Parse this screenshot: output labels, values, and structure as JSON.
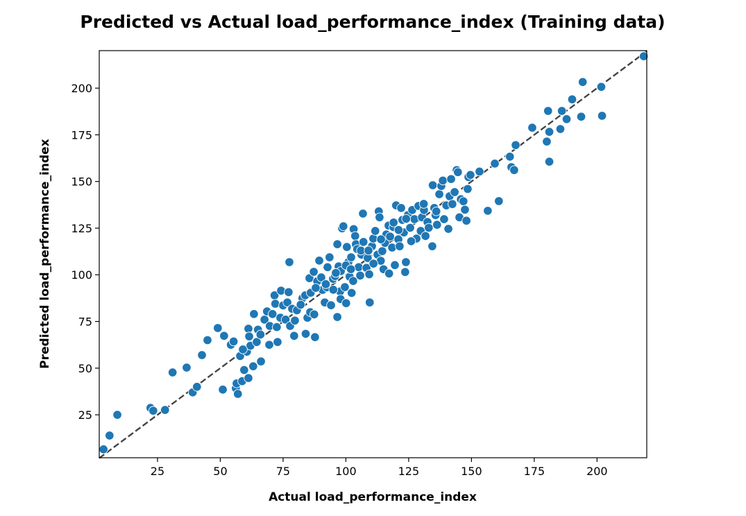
{
  "chart_data": {
    "type": "scatter",
    "title": "Predicted vs Actual load_performance_index (Training data)",
    "xlabel": "Actual load_performance_index",
    "ylabel": "Predicted load_performance_index",
    "xlim": [
      1.8,
      219.8
    ],
    "ylim": [
      2.0,
      220.1
    ],
    "xticks": [
      25,
      50,
      75,
      100,
      125,
      150,
      175,
      200
    ],
    "yticks": [
      25,
      50,
      75,
      100,
      125,
      150,
      175,
      200
    ],
    "grid": false,
    "point_color": "#1f77b4",
    "reference_line": {
      "style": "dashed",
      "color": "#444444",
      "from": [
        1.8,
        1.8
      ],
      "to": [
        219.8,
        219.8
      ]
    },
    "points": [
      [
        3.5,
        6.5
      ],
      [
        5.9,
        13.9
      ],
      [
        9,
        25
      ],
      [
        22.2,
        28.7
      ],
      [
        23.3,
        27.2
      ],
      [
        28,
        27.6
      ],
      [
        31,
        47.7
      ],
      [
        36.6,
        50.3
      ],
      [
        39,
        37
      ],
      [
        40.7,
        40
      ],
      [
        42.7,
        57
      ],
      [
        44.9,
        65
      ],
      [
        49,
        71.5
      ],
      [
        51,
        38.5
      ],
      [
        51.5,
        67.3
      ],
      [
        54.2,
        62.5
      ],
      [
        55.3,
        64.3
      ],
      [
        56.2,
        39.2
      ],
      [
        56.5,
        41.8
      ],
      [
        57,
        36.2
      ],
      [
        57.9,
        56.5
      ],
      [
        58.7,
        43
      ],
      [
        59.5,
        49
      ],
      [
        61.2,
        44.7
      ],
      [
        60.6,
        58.8
      ],
      [
        61.2,
        71.1
      ],
      [
        61.5,
        67
      ],
      [
        62,
        62
      ],
      [
        63.1,
        51
      ],
      [
        63.4,
        79
      ],
      [
        64.5,
        64
      ],
      [
        65,
        70.6
      ],
      [
        66.2,
        53.6
      ],
      [
        67.6,
        76
      ],
      [
        68.6,
        80.4
      ],
      [
        69.7,
        72.6
      ],
      [
        69.5,
        62.5
      ],
      [
        70.8,
        79
      ],
      [
        71.6,
        89
      ],
      [
        71.9,
        84.5
      ],
      [
        72.5,
        72
      ],
      [
        72.8,
        64
      ],
      [
        73.9,
        77
      ],
      [
        74.2,
        91.5
      ],
      [
        75,
        83.6
      ],
      [
        76,
        76
      ],
      [
        76.7,
        85.2
      ],
      [
        77.5,
        106.8
      ],
      [
        77.2,
        90.7
      ],
      [
        77.8,
        72.6
      ],
      [
        78.6,
        81.8
      ],
      [
        79.4,
        67.3
      ],
      [
        79.7,
        75.5
      ],
      [
        80.5,
        81
      ],
      [
        82.7,
        87.4
      ],
      [
        83.8,
        89
      ],
      [
        84,
        68.4
      ],
      [
        84.7,
        77
      ],
      [
        85.5,
        98.2
      ],
      [
        85.8,
        80
      ],
      [
        86,
        90.4
      ],
      [
        87.2,
        101.6
      ],
      [
        87.4,
        78.8
      ],
      [
        87.7,
        66.6
      ],
      [
        88.6,
        96.5
      ],
      [
        89.4,
        107.6
      ],
      [
        90.2,
        98.6
      ],
      [
        90.7,
        91.9
      ],
      [
        91.6,
        85.2
      ],
      [
        92.4,
        93.3
      ],
      [
        92.7,
        104.1
      ],
      [
        93.5,
        109.4
      ],
      [
        94.1,
        83.7
      ],
      [
        94.9,
        97.8
      ],
      [
        95.7,
        99.3
      ],
      [
        96.6,
        116.4
      ],
      [
        96.6,
        77.4
      ],
      [
        97.1,
        104.5
      ],
      [
        97.7,
        91.1
      ],
      [
        97.9,
        87
      ],
      [
        98.5,
        124.9
      ],
      [
        99,
        126
      ],
      [
        99.6,
        93.4
      ],
      [
        100.1,
        84.8
      ],
      [
        100.4,
        114.9
      ],
      [
        101,
        106.8
      ],
      [
        101.5,
        99
      ],
      [
        102.1,
        109.4
      ],
      [
        102.3,
        90.3
      ],
      [
        102.9,
        96.7
      ],
      [
        103.1,
        124.5
      ],
      [
        103.7,
        120.8
      ],
      [
        104,
        116.4
      ],
      [
        104.5,
        113.8
      ],
      [
        105.1,
        104.1
      ],
      [
        105.7,
        99.6
      ],
      [
        106.2,
        110.8
      ],
      [
        106.8,
        132.8
      ],
      [
        107,
        117.6
      ],
      [
        108.2,
        103.7
      ],
      [
        108.7,
        109
      ],
      [
        109.3,
        100.3
      ],
      [
        109.5,
        85.2
      ],
      [
        110.4,
        115.3
      ],
      [
        110.9,
        119.4
      ],
      [
        111.7,
        123.5
      ],
      [
        112.6,
        110.8
      ],
      [
        113.1,
        134
      ],
      [
        113.4,
        130.8
      ],
      [
        113.9,
        107.5
      ],
      [
        114.5,
        112.7
      ],
      [
        115,
        103
      ],
      [
        115.6,
        117.1
      ],
      [
        116.1,
        121.6
      ],
      [
        117,
        126.4
      ],
      [
        117.2,
        100.7
      ],
      [
        117.6,
        120.5
      ],
      [
        118.4,
        114.6
      ],
      [
        118.9,
        125.6
      ],
      [
        119.5,
        105.2
      ],
      [
        120,
        137.2
      ],
      [
        120.9,
        119
      ],
      [
        121.4,
        115.3
      ],
      [
        122,
        135.8
      ],
      [
        122.5,
        129.4
      ],
      [
        123.1,
        122.7
      ],
      [
        123.6,
        101.5
      ],
      [
        123.9,
        106.8
      ],
      [
        124.7,
        132
      ],
      [
        125.6,
        125.2
      ],
      [
        126.4,
        134.7
      ],
      [
        127.3,
        129.8
      ],
      [
        128.1,
        119.4
      ],
      [
        128.9,
        136.9
      ],
      [
        129.8,
        123.5
      ],
      [
        130.3,
        130.8
      ],
      [
        131.1,
        134.7
      ],
      [
        131.7,
        120.8
      ],
      [
        132.5,
        128.3
      ],
      [
        133,
        125.2
      ],
      [
        134.4,
        115.3
      ],
      [
        134.6,
        148
      ],
      [
        135.2,
        135.8
      ],
      [
        135.7,
        132
      ],
      [
        136.3,
        126.8
      ],
      [
        137.2,
        143.2
      ],
      [
        138,
        147.6
      ],
      [
        138.6,
        150.5
      ],
      [
        139.1,
        129.8
      ],
      [
        140,
        137.2
      ],
      [
        140.8,
        124.6
      ],
      [
        141.3,
        142.1
      ],
      [
        141.9,
        151.3
      ],
      [
        142.4,
        137.9
      ],
      [
        143.3,
        144.3
      ],
      [
        144.1,
        156.1
      ],
      [
        144.6,
        155
      ],
      [
        145.2,
        130.8
      ],
      [
        145.8,
        140.5
      ],
      [
        146.8,
        139.4
      ],
      [
        147.4,
        134.9
      ],
      [
        148,
        129
      ],
      [
        148.5,
        146
      ],
      [
        148.8,
        152.4
      ],
      [
        149.6,
        153.5
      ],
      [
        153.2,
        155.3
      ],
      [
        156.5,
        134.3
      ],
      [
        159.3,
        159.6
      ],
      [
        160.9,
        139.5
      ],
      [
        165.3,
        163.3
      ],
      [
        165.9,
        157.7
      ],
      [
        167,
        156.1
      ],
      [
        167.6,
        169.5
      ],
      [
        174.2,
        178.8
      ],
      [
        180,
        171.4
      ],
      [
        180.5,
        187.8
      ],
      [
        181,
        176.6
      ],
      [
        181,
        160.6
      ],
      [
        185.4,
        178.1
      ],
      [
        186,
        187.8
      ],
      [
        187.9,
        183.4
      ],
      [
        190.1,
        194
      ],
      [
        193.7,
        184.7
      ],
      [
        194.3,
        203.3
      ],
      [
        201.7,
        200.7
      ],
      [
        202,
        185.2
      ],
      [
        218.6,
        217.1
      ],
      [
        92,
        95
      ],
      [
        95,
        92
      ],
      [
        98,
        102
      ],
      [
        100,
        105
      ],
      [
        106,
        113
      ],
      [
        111,
        106
      ],
      [
        119,
        128
      ],
      [
        121,
        124
      ],
      [
        126,
        118
      ],
      [
        131,
        138
      ],
      [
        88,
        93
      ],
      [
        82,
        84
      ],
      [
        66,
        68
      ],
      [
        59,
        60
      ],
      [
        114,
        119
      ],
      [
        109,
        113
      ],
      [
        102,
        103
      ],
      [
        96,
        101
      ],
      [
        124,
        130
      ],
      [
        136,
        134
      ]
    ]
  }
}
